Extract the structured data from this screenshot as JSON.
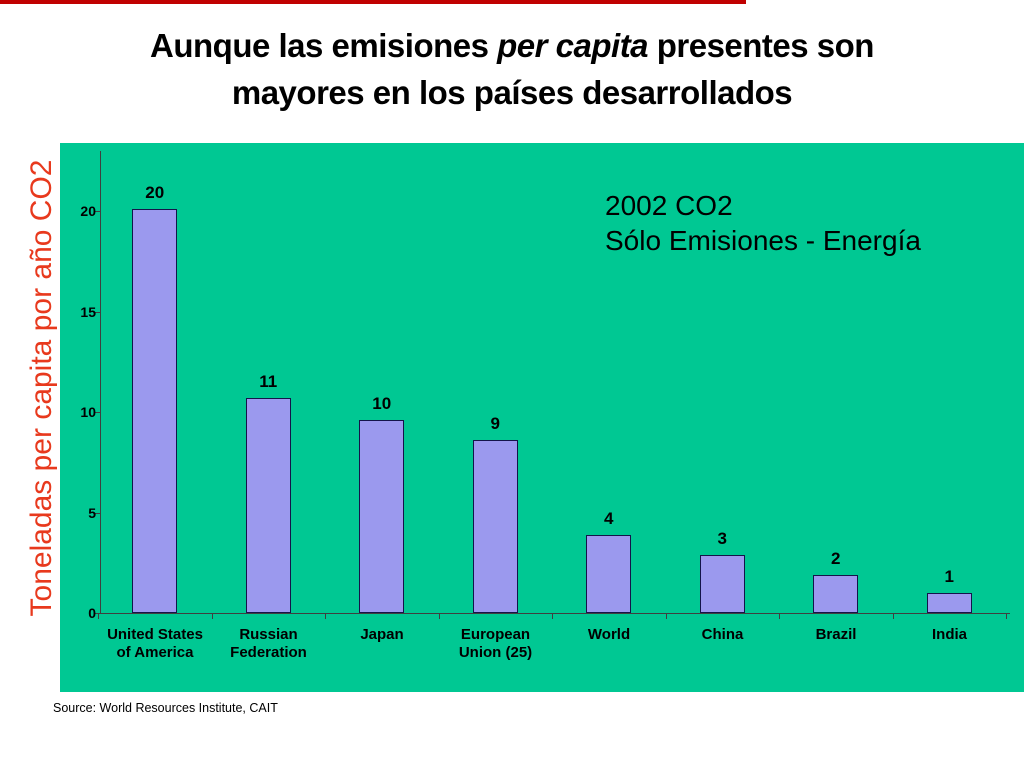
{
  "slide": {
    "title": {
      "line1_pre": "Aunque las emisiones ",
      "line1_italic": "per capita",
      "line1_post": " presentes son",
      "line2": "mayores en los países desarrollados"
    },
    "source": "Source: World Resources Institute, CAIT",
    "accent_color": "#c00000"
  },
  "chart_data": {
    "type": "bar",
    "title": "",
    "annotation_line1": "2002 CO2",
    "annotation_line2": "Sólo Emisiones - Energía",
    "ylabel": "Toneladas per capita por año CO2",
    "xlabel": "",
    "categories": [
      "United States of America",
      "Russian Federation",
      "Japan",
      "European Union (25)",
      "World",
      "China",
      "Brazil",
      "India"
    ],
    "category_lines": [
      [
        "United States",
        "of America"
      ],
      [
        "Russian",
        "Federation"
      ],
      [
        "Japan"
      ],
      [
        "European",
        "Union (25)"
      ],
      [
        "World"
      ],
      [
        "China"
      ],
      [
        "Brazil"
      ],
      [
        "India"
      ]
    ],
    "values": [
      20.1,
      10.7,
      9.6,
      8.6,
      3.9,
      2.9,
      1.9,
      1.0
    ],
    "value_labels": [
      "20",
      "11",
      "10",
      "9",
      "4",
      "3",
      "2",
      "1"
    ],
    "yticks": [
      0,
      5,
      10,
      15,
      20
    ],
    "ylim": [
      0,
      22
    ],
    "grid": false,
    "legend": false,
    "colors": {
      "plot_bg": "#00c893",
      "bar_fill": "#9b99ee",
      "bar_border": "#14144a",
      "axis": "#3f3f3f",
      "ylabel_text": "#e8391d",
      "text": "#000000"
    }
  }
}
